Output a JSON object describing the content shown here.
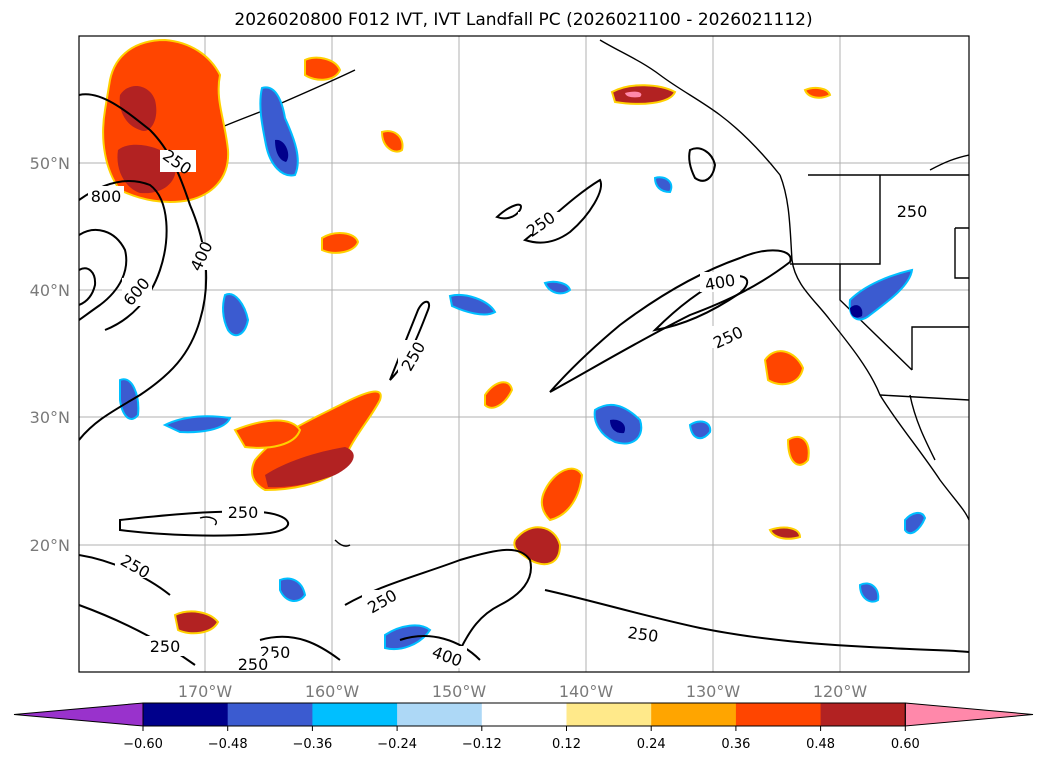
{
  "title": "2026020800 F012 IVT, IVT Landfall PC (2026021100 - 2026021112)",
  "map": {
    "lat_labels": [
      "50°N",
      "40°N",
      "30°N",
      "20°N"
    ],
    "lon_labels": [
      "170°W",
      "160°W",
      "150°W",
      "140°W",
      "130°W",
      "120°W"
    ],
    "contour_labels": [
      "250",
      "800",
      "400",
      "600",
      "250",
      "250",
      "400",
      "250",
      "250",
      "250",
      "250",
      "250",
      "250",
      "250",
      "400",
      "250"
    ]
  },
  "colorbar": {
    "colors": [
      "#9932cc",
      "#00008b",
      "#3b5bd0",
      "#00bfff",
      "#add8f6",
      "#ffffff",
      "#ffe98a",
      "#ffa500",
      "#ff4500",
      "#b22222",
      "#ff88aa"
    ],
    "tick_labels": [
      "−0.60",
      "−0.48",
      "−0.36",
      "−0.24",
      "−0.12",
      "0.12",
      "0.24",
      "0.36",
      "0.48",
      "0.60"
    ]
  }
}
